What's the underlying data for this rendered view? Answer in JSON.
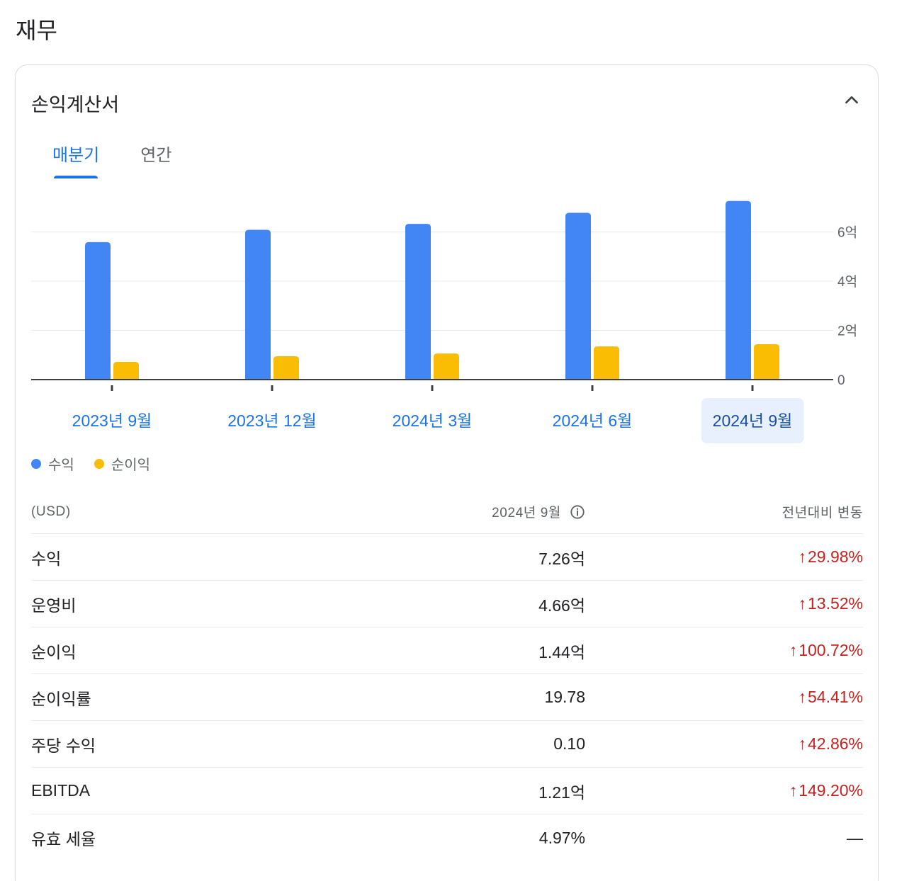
{
  "section_title": "재무",
  "card_title": "손익계산서",
  "tabs": [
    {
      "label": "매분기",
      "active": true
    },
    {
      "label": "연간",
      "active": false
    }
  ],
  "legend": [
    {
      "label": "수익",
      "color": "#4285f4"
    },
    {
      "label": "순이익",
      "color": "#fbbc04"
    }
  ],
  "chart_data": {
    "type": "bar",
    "categories": [
      "2023년 9월",
      "2023년 12월",
      "2024년 3월",
      "2024년 6월",
      "2024년 9월"
    ],
    "selected_category": "2024년 9월",
    "series": [
      {
        "name": "수익",
        "color": "#4285f4",
        "values": [
          5.59,
          6.09,
          6.33,
          6.78,
          7.26
        ]
      },
      {
        "name": "순이익",
        "color": "#fbbc04",
        "values": [
          0.72,
          0.95,
          1.06,
          1.35,
          1.44
        ]
      }
    ],
    "y_ticks": [
      {
        "value": 0,
        "label": "0"
      },
      {
        "value": 2,
        "label": "2억"
      },
      {
        "value": 4,
        "label": "4억"
      },
      {
        "value": 6,
        "label": "6억"
      }
    ],
    "ylim": [
      0,
      7.6
    ],
    "y_axis_position": "right",
    "grid": true
  },
  "table": {
    "header": {
      "unit": "(USD)",
      "period": "2024년 9월",
      "change": "전년대비 변동"
    },
    "rows": [
      {
        "label": "수익",
        "value": "7.26억",
        "change": "29.98%",
        "dir": "up"
      },
      {
        "label": "운영비",
        "value": "4.66억",
        "change": "13.52%",
        "dir": "up"
      },
      {
        "label": "순이익",
        "value": "1.44억",
        "change": "100.72%",
        "dir": "up"
      },
      {
        "label": "순이익률",
        "value": "19.78",
        "change": "54.41%",
        "dir": "up"
      },
      {
        "label": "주당 수익",
        "value": "0.10",
        "change": "42.86%",
        "dir": "up"
      },
      {
        "label": "EBITDA",
        "value": "1.21억",
        "change": "149.20%",
        "dir": "up"
      },
      {
        "label": "유효 세율",
        "value": "4.97%",
        "change": "—",
        "dir": "none"
      }
    ]
  },
  "icons": {
    "collapse": "chevron-up-icon",
    "info": "info-icon",
    "up": "arrow-up-icon"
  }
}
